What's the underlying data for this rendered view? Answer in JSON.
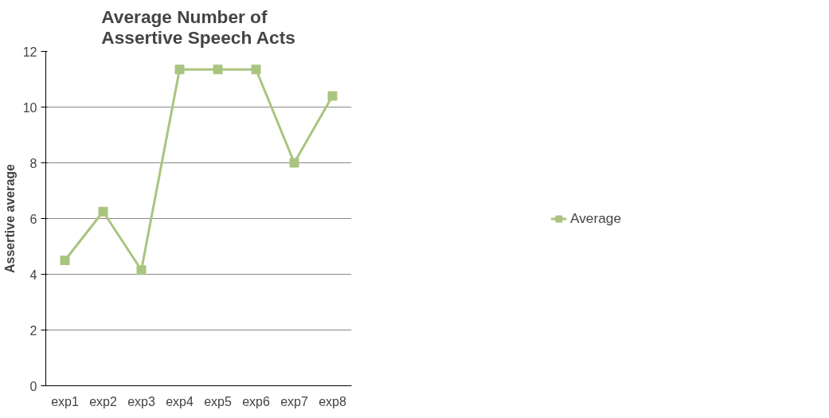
{
  "chart_data": {
    "type": "line",
    "title": "Average Number of\nAssertive Speech Acts",
    "ylabel": "Assertive average",
    "categories": [
      "exp1",
      "exp2",
      "exp3",
      "exp4",
      "exp5",
      "exp6",
      "exp7",
      "exp8"
    ],
    "series": [
      {
        "name": "Average",
        "color": "#a9c47f",
        "values": [
          4.5,
          6.25,
          4.15,
          11.35,
          11.35,
          11.35,
          8.0,
          10.4
        ]
      }
    ],
    "ylim": [
      0,
      12
    ],
    "yticks": [
      0,
      2,
      4,
      6,
      8,
      10,
      12
    ],
    "grid": "y",
    "legend": "right",
    "marker": "square",
    "line_style": "solid"
  }
}
